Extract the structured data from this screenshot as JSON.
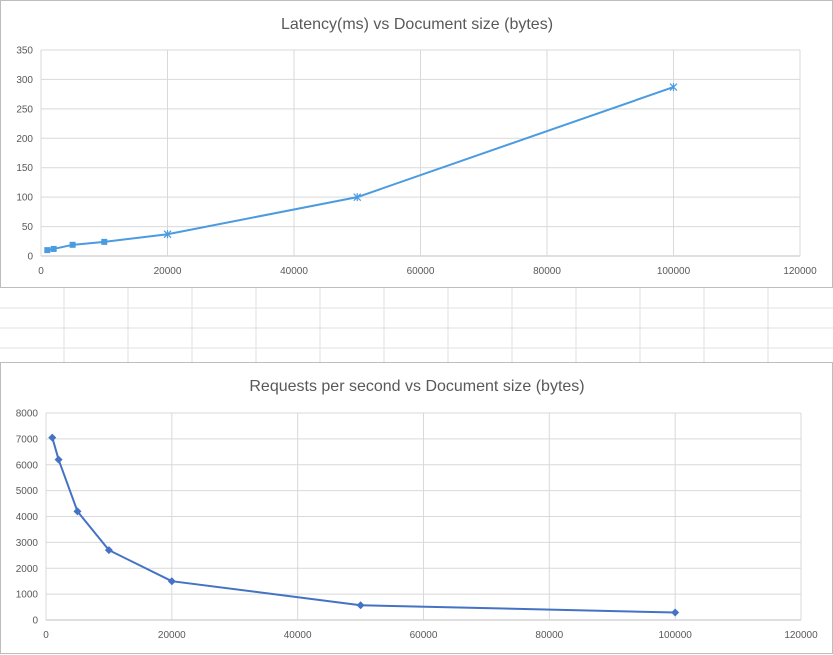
{
  "chart_data": [
    {
      "type": "scatter",
      "title": "Latency(ms) vs Document size (bytes)",
      "xlabel": "",
      "ylabel": "",
      "xlim": [
        0,
        120000
      ],
      "ylim": [
        0,
        350
      ],
      "xticks": [
        "0",
        "20000",
        "40000",
        "60000",
        "80000",
        "100000",
        "120000"
      ],
      "yticks": [
        "0",
        "50",
        "100",
        "150",
        "200",
        "250",
        "300",
        "350"
      ],
      "grid": true,
      "legend": "none",
      "series": [
        {
          "x": [
            1000,
            2000,
            5000,
            10000,
            20000,
            50000,
            100000
          ],
          "y": [
            10,
            12,
            19,
            24,
            37,
            100,
            287
          ],
          "color": "#4a9be0",
          "markers": [
            "square",
            "square",
            "square",
            "square",
            "star",
            "star",
            "star"
          ]
        }
      ]
    },
    {
      "type": "scatter",
      "title": "Requests per second vs Document size (bytes)",
      "xlabel": "",
      "ylabel": "",
      "xlim": [
        0,
        120000
      ],
      "ylim": [
        0,
        8000
      ],
      "xticks": [
        "0",
        "20000",
        "40000",
        "60000",
        "80000",
        "100000",
        "120000"
      ],
      "yticks": [
        "0",
        "1000",
        "2000",
        "3000",
        "4000",
        "5000",
        "6000",
        "7000",
        "8000"
      ],
      "grid": true,
      "legend": "none",
      "series": [
        {
          "x": [
            1000,
            2000,
            5000,
            10000,
            20000,
            50000,
            100000
          ],
          "y": [
            7050,
            6200,
            4200,
            2700,
            1500,
            570,
            290
          ],
          "color": "#4472c4",
          "markers": [
            "diamond",
            "diamond",
            "diamond",
            "diamond",
            "diamond",
            "diamond",
            "diamond"
          ]
        }
      ]
    }
  ],
  "colors": {
    "gridline": "#d9d9d9",
    "text": "#595959",
    "sheet_gridline": "#e0e0e0"
  }
}
